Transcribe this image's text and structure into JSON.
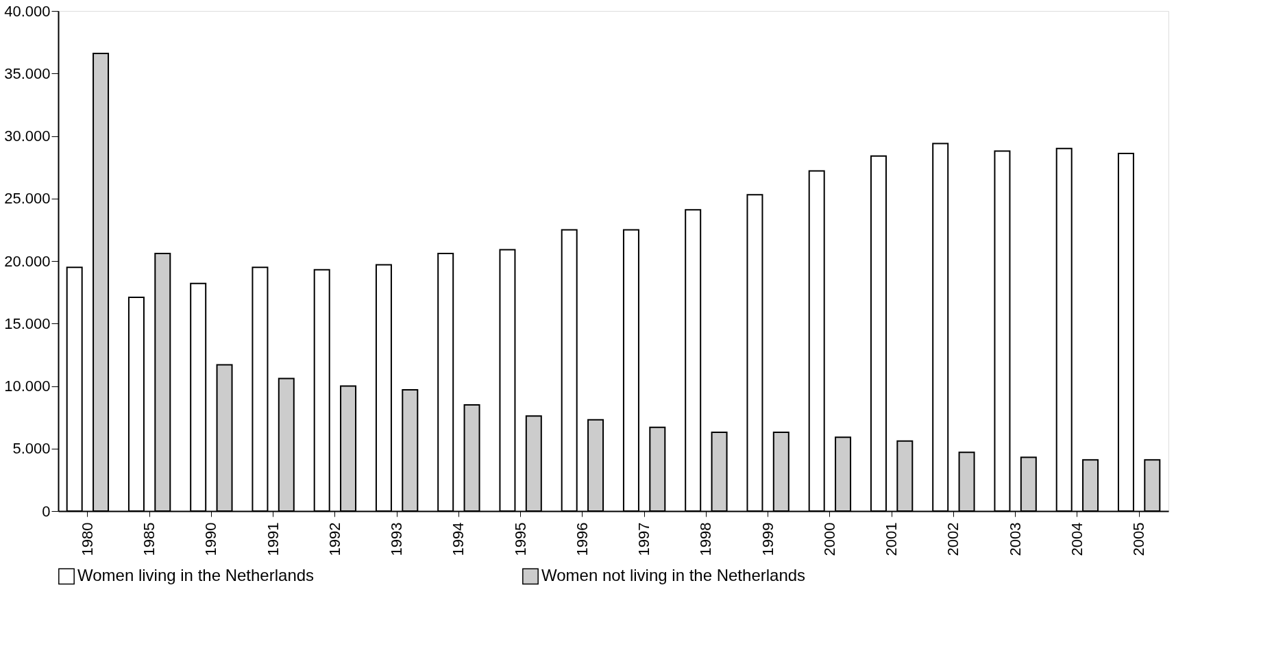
{
  "chart_data": {
    "type": "bar",
    "categories": [
      "1980",
      "1985",
      "1990",
      "1991",
      "1992",
      "1993",
      "1994",
      "1995",
      "1996",
      "1997",
      "1998",
      "1999",
      "2000",
      "2001",
      "2002",
      "2003",
      "2004",
      "2005"
    ],
    "series": [
      {
        "name": "Women living in the Netherlands",
        "color": "#ffffff",
        "values": [
          19500,
          17100,
          18200,
          19500,
          19300,
          19700,
          20600,
          20900,
          22500,
          22500,
          24100,
          25300,
          27200,
          28400,
          29400,
          28800,
          29000,
          28600
        ]
      },
      {
        "name": "Women not living in the Netherlands",
        "color": "#cccccc",
        "values": [
          36600,
          20600,
          11700,
          10600,
          10000,
          9700,
          8500,
          7600,
          7300,
          6700,
          6300,
          6300,
          5900,
          5600,
          4700,
          4300,
          4100,
          4100
        ]
      }
    ],
    "ylim": [
      0,
      40000
    ],
    "yticks": [
      {
        "value": 0,
        "label": "0"
      },
      {
        "value": 5000,
        "label": "5.000"
      },
      {
        "value": 10000,
        "label": "10.000"
      },
      {
        "value": 15000,
        "label": "15.000"
      },
      {
        "value": 20000,
        "label": "20.000"
      },
      {
        "value": 25000,
        "label": "25.000"
      },
      {
        "value": 30000,
        "label": "30.000"
      },
      {
        "value": 35000,
        "label": "35.000"
      },
      {
        "value": 40000,
        "label": "40.000"
      }
    ],
    "grid": false,
    "legend": "bottom"
  }
}
